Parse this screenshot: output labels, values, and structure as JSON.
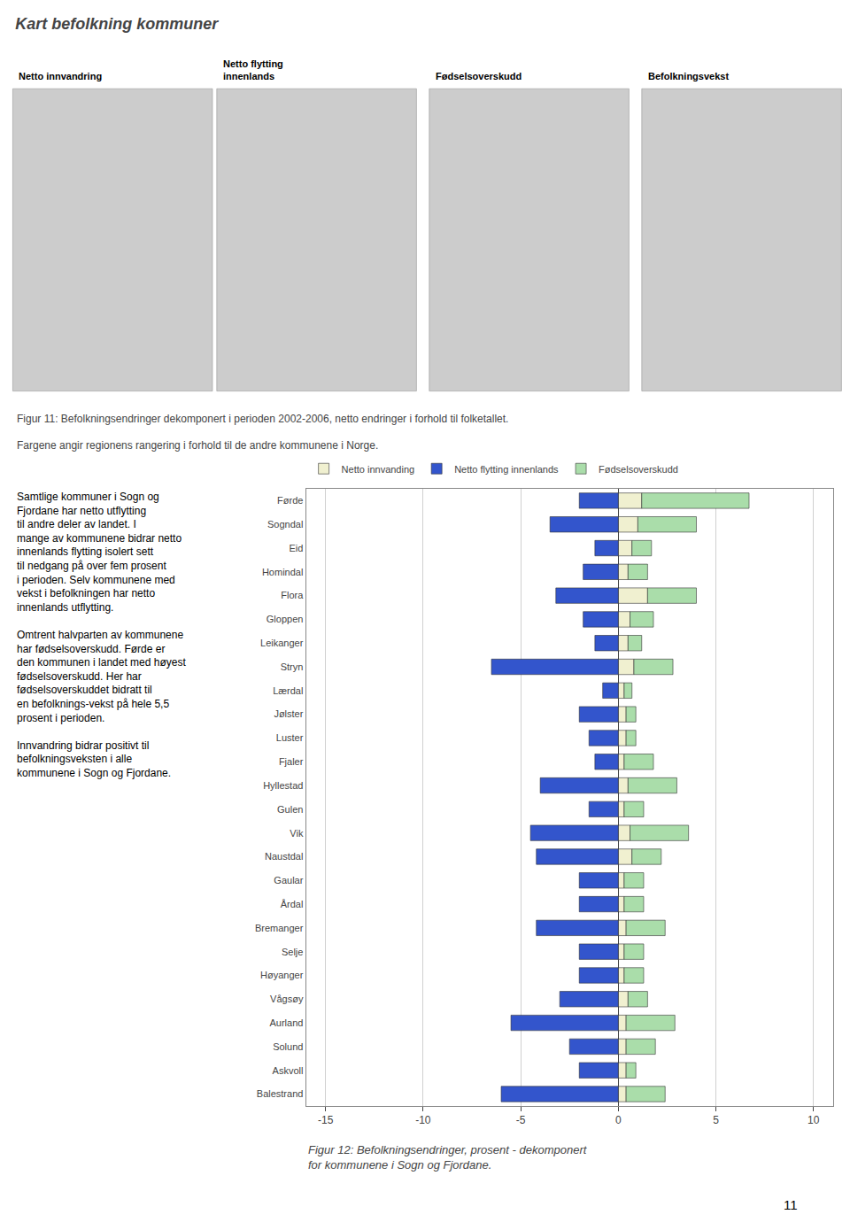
{
  "chart_data": {
    "type": "bar",
    "orientation": "horizontal",
    "stacked": true,
    "title": "Kart befolkning kommuner",
    "annotations": [
      "Netto innvandring",
      "Netto flytting\ninnenlands",
      "Fødselsoverskudd",
      "Befolkningsvekst",
      "Figur 11: Befolkningsendringer dekomponert i perioden 2002-2006, netto endringer i forhold til folketallet.",
      "Fargene angir regionens rangering i forhold til de andre kommunene i Norge.",
      "Samtlige kommuner i Sogn og Fjordane har netto utflytting til andre deler av landet.  I mange av kommunene bidrar netto innenlands flytting isolert sett til nedgang på over fem prosent i perioden.  Selv kommunene med vekst i befolkningen har netto innenlands utflytting.",
      "Omtrent halvparten av kommunene har fødselsoverskudd.  Førde er den kommunen i landet med høyest fødselsoverskudd.  Her har fødselsoverskuddet bidratt til en befolknings-vekst på hele 5,5 prosent i perioden.",
      "Innvandring bidrar positivt til befolkningsveksten i alle kommunene i Sogn og Fjordane.",
      "Figur 12: Befolkningsendringer, prosent - dekomponert\nfor kommunene i Sogn og Fjordane.",
      "11"
    ],
    "categories": [
      "Førde",
      "Sogndal",
      "Eid",
      "Homindal",
      "Flora",
      "Gloppen",
      "Leikanger",
      "Stryn",
      "Lærdal",
      "Jølster",
      "Luster",
      "Fjaler",
      "Hyllestad",
      "Gulen",
      "Vik",
      "Naustdal",
      "Gaular",
      "Årdal",
      "Bremanger",
      "Selje",
      "Høyanger",
      "Vågsøy",
      "Aurland",
      "Solund",
      "Askvoll",
      "Balestrand"
    ],
    "series": [
      {
        "name": "Netto innvanding",
        "color": "#f0f0d0",
        "values": [
          1.2,
          1.0,
          0.7,
          0.5,
          1.5,
          0.6,
          0.5,
          0.8,
          0.3,
          0.4,
          0.4,
          0.3,
          0.5,
          0.3,
          0.6,
          0.7,
          0.3,
          0.3,
          0.4,
          0.3,
          0.3,
          0.5,
          0.4,
          0.4,
          0.4,
          0.4
        ]
      },
      {
        "name": "Netto flytting innenlands",
        "color": "#3355cc",
        "values": [
          -2.0,
          -3.5,
          -1.2,
          -1.8,
          -3.2,
          -1.8,
          -1.2,
          -6.5,
          -0.8,
          -2.0,
          -1.5,
          -1.2,
          -4.0,
          -1.5,
          -4.5,
          -4.2,
          -2.0,
          -2.0,
          -4.2,
          -2.0,
          -2.0,
          -3.0,
          -5.5,
          -2.5,
          -2.0,
          -6.0
        ]
      },
      {
        "name": "Fødselsoverskudd",
        "color": "#aaddaa",
        "values": [
          5.5,
          3.0,
          1.0,
          1.0,
          2.5,
          1.2,
          0.7,
          2.0,
          0.4,
          0.5,
          0.5,
          1.5,
          2.5,
          1.0,
          3.0,
          1.5,
          1.0,
          1.0,
          2.0,
          1.0,
          1.0,
          1.0,
          2.5,
          1.5,
          0.5,
          2.0
        ]
      }
    ],
    "xlim": [
      -16,
      11
    ],
    "xticks": [
      -15,
      -10,
      -5,
      0,
      5,
      10
    ],
    "grid": true,
    "legend": "top"
  }
}
